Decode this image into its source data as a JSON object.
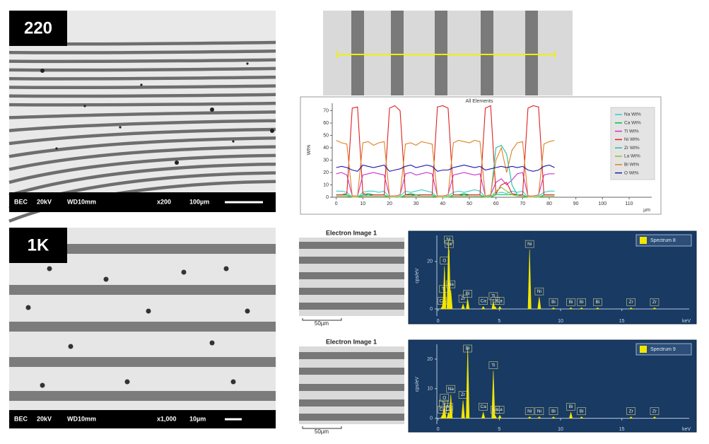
{
  "panels": {
    "sem_top": {
      "label": "220",
      "info": [
        "BEC",
        "20kV",
        "WD10mm",
        "x200",
        "100µm"
      ]
    },
    "sem_bottom": {
      "label": "1K",
      "info": [
        "BEC",
        "20kV",
        "WD10mm",
        "x1,000",
        "10µm"
      ]
    },
    "electron_images": [
      {
        "title": "Electron Image 1",
        "scale": "50µm"
      },
      {
        "title": "Electron Image 1",
        "scale": "50µm"
      }
    ]
  },
  "chart_data": [
    {
      "type": "line",
      "title": "All Elements",
      "ylabel": "Wt%",
      "xlabel": "µm",
      "xlim": [
        -1.5,
        118.5
      ],
      "ylim": [
        0,
        76
      ],
      "xticks": [
        0,
        10,
        20,
        30,
        40,
        50,
        60,
        70,
        80,
        90,
        100,
        110
      ],
      "yticks": [
        0,
        10,
        20,
        30,
        40,
        50,
        60,
        70
      ],
      "x": [
        0,
        2,
        4,
        6,
        8,
        10,
        12,
        14,
        16,
        18,
        20,
        22,
        24,
        26,
        28,
        30,
        32,
        34,
        36,
        38,
        40,
        42,
        44,
        46,
        48,
        50,
        52,
        54,
        56,
        58,
        60,
        62,
        64,
        66,
        68,
        70,
        72,
        74,
        76,
        78,
        80,
        82
      ],
      "series": [
        {
          "name": "Na Wt%",
          "color": "#33cccc",
          "values": [
            5,
            5,
            4,
            0,
            0,
            4,
            5,
            5,
            4,
            5,
            0,
            0,
            1,
            5,
            4,
            5,
            6,
            5,
            4,
            0,
            0,
            1,
            4,
            5,
            4,
            5,
            6,
            5,
            0,
            1,
            3,
            4,
            3,
            5,
            4,
            5,
            0,
            0,
            1,
            4,
            5,
            5
          ]
        },
        {
          "name": "Ca Wt%",
          "color": "#00c040",
          "values": [
            2,
            2,
            2,
            0,
            0,
            2,
            3,
            2,
            2,
            2,
            0,
            0,
            0,
            2,
            3,
            2,
            2,
            2,
            2,
            0,
            0,
            0,
            2,
            2,
            3,
            2,
            2,
            2,
            0,
            0,
            2,
            2,
            2,
            2,
            2,
            2,
            0,
            0,
            0,
            2,
            2,
            2
          ]
        },
        {
          "name": "Ti Wt%",
          "color": "#d030d0",
          "values": [
            19,
            20,
            18,
            1,
            1,
            18,
            19,
            20,
            19,
            18,
            1,
            1,
            2,
            19,
            20,
            18,
            19,
            20,
            19,
            1,
            1,
            2,
            18,
            19,
            20,
            19,
            18,
            19,
            1,
            2,
            12,
            15,
            10,
            14,
            19,
            20,
            1,
            1,
            2,
            18,
            19,
            19
          ]
        },
        {
          "name": "Ni Wt%",
          "color": "#e02020",
          "values": [
            2,
            2,
            3,
            72,
            73,
            3,
            2,
            2,
            2,
            2,
            72,
            74,
            70,
            2,
            2,
            2,
            2,
            2,
            2,
            73,
            74,
            72,
            2,
            2,
            2,
            2,
            2,
            2,
            72,
            74,
            3,
            10,
            12,
            3,
            2,
            2,
            72,
            74,
            73,
            2,
            2,
            2
          ]
        },
        {
          "name": "Zr Wt%",
          "color": "#20c0a0",
          "values": [
            1,
            1,
            1,
            0,
            0,
            1,
            2,
            1,
            1,
            1,
            0,
            0,
            0,
            1,
            1,
            2,
            1,
            1,
            1,
            0,
            0,
            0,
            1,
            1,
            2,
            1,
            1,
            1,
            0,
            1,
            40,
            42,
            35,
            10,
            2,
            1,
            0,
            0,
            0,
            1,
            1,
            1
          ]
        },
        {
          "name": "La Wt%",
          "color": "#90c030",
          "values": [
            1,
            1,
            1,
            0,
            0,
            1,
            1,
            1,
            1,
            1,
            0,
            0,
            0,
            1,
            1,
            1,
            1,
            1,
            1,
            0,
            0,
            0,
            1,
            1,
            1,
            1,
            1,
            1,
            0,
            0,
            5,
            8,
            5,
            2,
            1,
            1,
            0,
            0,
            0,
            1,
            1,
            1
          ]
        },
        {
          "name": "Bi Wt%",
          "color": "#e08020",
          "values": [
            46,
            44,
            43,
            1,
            1,
            44,
            45,
            42,
            44,
            45,
            1,
            1,
            2,
            43,
            44,
            42,
            45,
            44,
            43,
            1,
            1,
            2,
            44,
            46,
            45,
            44,
            46,
            45,
            1,
            2,
            30,
            40,
            20,
            38,
            44,
            45,
            1,
            1,
            2,
            43,
            45,
            46
          ]
        },
        {
          "name": "O Wt%",
          "color": "#1a1aaa",
          "values": [
            24,
            25,
            24,
            22,
            21,
            26,
            25,
            24,
            25,
            26,
            21,
            22,
            23,
            25,
            26,
            24,
            25,
            26,
            25,
            21,
            22,
            22,
            24,
            25,
            26,
            25,
            24,
            25,
            22,
            23,
            24,
            25,
            24,
            25,
            24,
            25,
            22,
            21,
            22,
            25,
            26,
            24
          ]
        }
      ]
    },
    {
      "type": "spectrum",
      "legend": "Spectrum 8",
      "color": "#f2e600",
      "ylabel": "cps/eV",
      "xlabel": "keV",
      "xlim": [
        -0.1,
        20.5
      ],
      "ylim": [
        -3,
        31
      ],
      "xticks": [
        0,
        5,
        10,
        15
      ],
      "yticks": [
        0,
        20
      ],
      "peaks": [
        {
          "label": "Ca",
          "x": 0.34,
          "y": 1
        },
        {
          "label": "Ti",
          "x": 0.45,
          "y": 6
        },
        {
          "label": "O",
          "x": 0.52,
          "y": 18
        },
        {
          "label": "Ni",
          "x": 0.85,
          "y": 29
        },
        {
          "label": "La",
          "x": 0.9,
          "y": 25
        },
        {
          "label": "Na",
          "x": 1.04,
          "y": 8
        },
        {
          "label": "Zr",
          "x": 2.04,
          "y": 2
        },
        {
          "label": "Bi",
          "x": 2.42,
          "y": 4
        },
        {
          "label": "Ca",
          "x": 3.69,
          "y": 1
        },
        {
          "label": "Ti",
          "x": 4.51,
          "y": 3
        },
        {
          "label": "La",
          "x": 4.65,
          "y": 1
        },
        {
          "label": "La",
          "x": 5.04,
          "y": 1
        },
        {
          "label": "Ni",
          "x": 7.47,
          "y": 25
        },
        {
          "label": "Ni",
          "x": 8.26,
          "y": 5
        },
        {
          "label": "Bi",
          "x": 9.42,
          "y": 0.5
        },
        {
          "label": "Bi",
          "x": 10.84,
          "y": 0.5
        },
        {
          "label": "Bi",
          "x": 11.71,
          "y": 0.5
        },
        {
          "label": "Bi",
          "x": 13.02,
          "y": 0.5
        },
        {
          "label": "Zr",
          "x": 15.75,
          "y": 0.5
        },
        {
          "label": "Zr",
          "x": 17.67,
          "y": 0.5
        }
      ]
    },
    {
      "type": "spectrum",
      "legend": "Spectrum 9",
      "color": "#f2e600",
      "ylabel": "cps/eV",
      "xlabel": "keV",
      "xlim": [
        -0.1,
        20.5
      ],
      "ylim": [
        -2,
        25
      ],
      "xticks": [
        0,
        5,
        10,
        15
      ],
      "yticks": [
        0,
        10,
        20
      ],
      "peaks": [
        {
          "label": "Ca",
          "x": 0.34,
          "y": 1
        },
        {
          "label": "Ti",
          "x": 0.45,
          "y": 3
        },
        {
          "label": "O",
          "x": 0.52,
          "y": 5
        },
        {
          "label": "Ni",
          "x": 0.85,
          "y": 2
        },
        {
          "label": "La",
          "x": 0.83,
          "y": 1
        },
        {
          "label": "Na",
          "x": 1.04,
          "y": 8
        },
        {
          "label": "Zr",
          "x": 2.04,
          "y": 6
        },
        {
          "label": "Bi",
          "x": 2.42,
          "y": 24
        },
        {
          "label": "Ca",
          "x": 3.69,
          "y": 2
        },
        {
          "label": "Ti",
          "x": 4.51,
          "y": 16
        },
        {
          "label": "La",
          "x": 4.65,
          "y": 1
        },
        {
          "label": "La",
          "x": 5.04,
          "y": 1
        },
        {
          "label": "Ni",
          "x": 7.47,
          "y": 0.5
        },
        {
          "label": "Ni",
          "x": 8.26,
          "y": 0.5
        },
        {
          "label": "Bi",
          "x": 9.42,
          "y": 0.5
        },
        {
          "label": "Bi",
          "x": 10.84,
          "y": 2
        },
        {
          "label": "Bi",
          "x": 11.71,
          "y": 0.5
        },
        {
          "label": "Zr",
          "x": 15.75,
          "y": 0.5
        },
        {
          "label": "Zr",
          "x": 17.67,
          "y": 0.5
        }
      ]
    }
  ]
}
